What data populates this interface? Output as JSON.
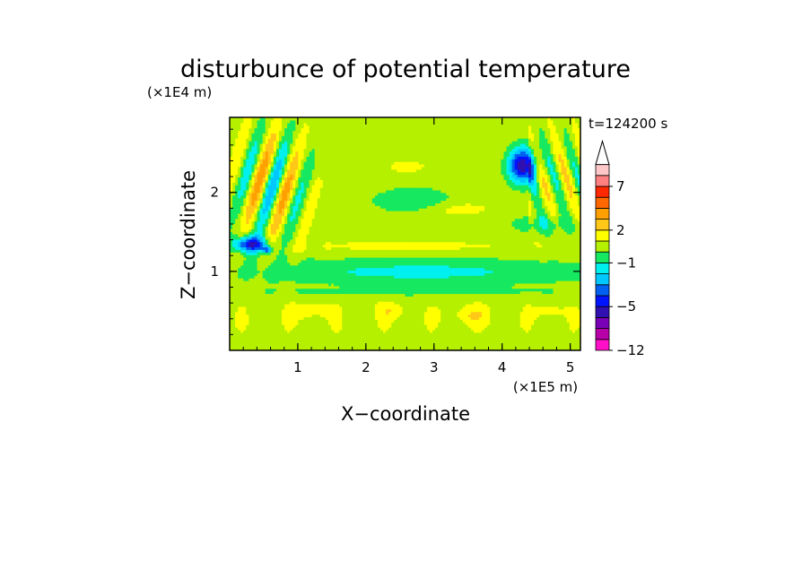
{
  "chart_data": {
    "type": "heatmap",
    "title": "disturbunce of potential temperature",
    "xlabel": "X−coordinate",
    "ylabel": "Z−coordinate",
    "x_unit": "(×1E5 m)",
    "y_unit": "(×1E4 m)",
    "time_label": "t=124200 s",
    "xlim": [
      0,
      5.15
    ],
    "ylim": [
      0,
      2.95
    ],
    "x_ticks": [
      {
        "value": 1,
        "label": "1"
      },
      {
        "value": 2,
        "label": "2"
      },
      {
        "value": 3,
        "label": "3"
      },
      {
        "value": 4,
        "label": "4"
      },
      {
        "value": 5,
        "label": "5"
      }
    ],
    "y_ticks": [
      {
        "value": 1,
        "label": "1"
      },
      {
        "value": 2,
        "label": "2"
      }
    ],
    "colorbar": {
      "levels": [
        -12,
        -10,
        -8,
        -6.5,
        -5,
        -4,
        -3,
        -2,
        -1,
        0,
        1,
        2,
        3,
        4,
        5.5,
        7,
        9,
        11
      ],
      "colors": [
        "#ff10c8",
        "#b800a8",
        "#7a00b8",
        "#3010b0",
        "#0014ff",
        "#0060f0",
        "#00c8ff",
        "#00f0f0",
        "#16e860",
        "#b4f000",
        "#ffff00",
        "#ffc818",
        "#ffa000",
        "#ff6800",
        "#ff2800",
        "#ff8080",
        "#ffc8c8"
      ],
      "labels": [
        {
          "value": -12,
          "label": "−12"
        },
        {
          "value": -5,
          "label": "−5"
        },
        {
          "value": -1,
          "label": "−1"
        },
        {
          "value": 2,
          "label": "2"
        },
        {
          "value": 7,
          "label": "7"
        }
      ],
      "extend": "max"
    },
    "grid": false
  }
}
